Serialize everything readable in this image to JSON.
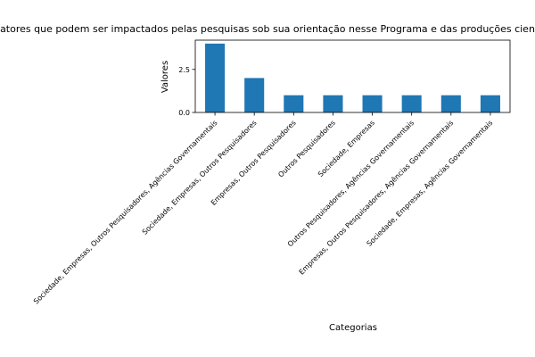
{
  "chart_data": {
    "type": "bar",
    "title": "atores que podem ser impactados pelas pesquisas sob sua orientação nesse Programa e das produções cien",
    "xlabel": "Categorias",
    "ylabel": "Valores",
    "categories": [
      "Sociedade, Empresas, Outros Pesquisadores, Agências Governamentais",
      "Sociedade, Empresas, Outros Pesquisadores",
      "Empresas, Outros Pesquisadores",
      "Outros Pesquisadores",
      "Sociedade, Empresas",
      "Outros Pesquisadores, Agências Governamentais",
      "Empresas, Outros Pesquisadores, Agências Governamentais",
      "Sociedade, Empresas, Agências Governamentais"
    ],
    "values": [
      4,
      2,
      1,
      1,
      1,
      1,
      1,
      1
    ],
    "ylim": [
      0,
      4.2
    ],
    "yticks": [
      0.0,
      2.5
    ],
    "ytick_labels": [
      "0.0",
      "2.5"
    ],
    "bar_color": "#1f77b4",
    "grid": false,
    "legend": "none"
  }
}
